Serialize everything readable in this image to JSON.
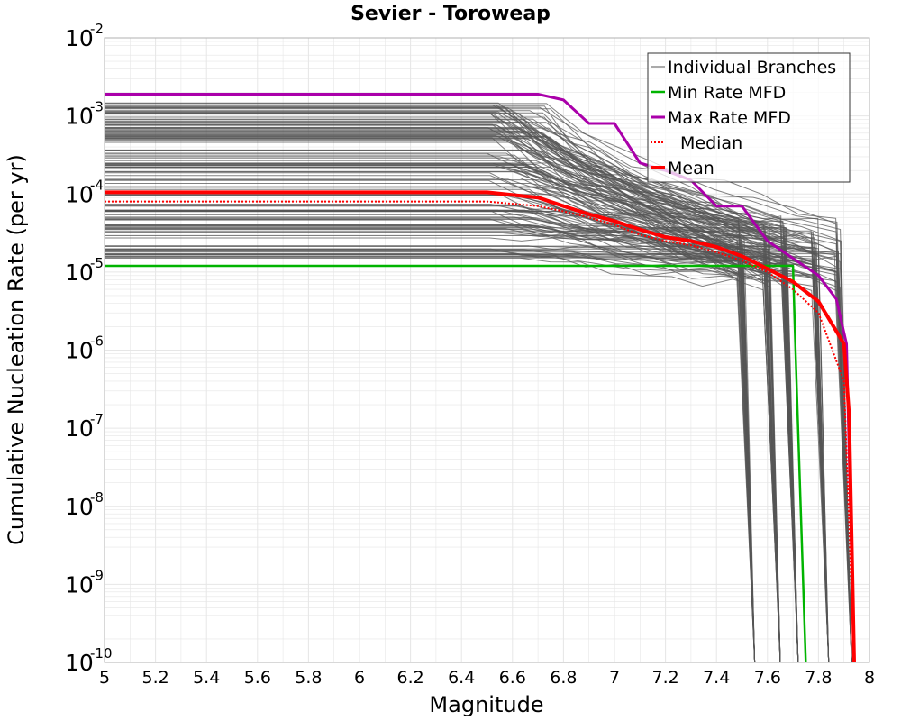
{
  "chart_data": {
    "type": "line",
    "title": "Sevier - Toroweap",
    "xlabel": "Magnitude",
    "ylabel": "Cumulative Nucleation Rate (per yr)",
    "yscale": "log",
    "xlim": [
      5,
      8
    ],
    "ylim": [
      1e-10,
      0.01
    ],
    "x_ticks": [
      "5",
      "5.2",
      "5.4",
      "5.6",
      "5.8",
      "6",
      "6.2",
      "6.4",
      "6.6",
      "6.8",
      "7",
      "7.2",
      "7.4",
      "7.6",
      "7.8",
      "8"
    ],
    "y_ticks": [
      {
        "base": "10",
        "exp": "-2"
      },
      {
        "base": "10",
        "exp": "-3"
      },
      {
        "base": "10",
        "exp": "-4"
      },
      {
        "base": "10",
        "exp": "-5"
      },
      {
        "base": "10",
        "exp": "-6"
      },
      {
        "base": "10",
        "exp": "-7"
      },
      {
        "base": "10",
        "exp": "-8"
      },
      {
        "base": "10",
        "exp": "-9"
      },
      {
        "base": "10",
        "exp": "-10"
      }
    ],
    "grid": true,
    "legend_position": "top-right",
    "colors": {
      "branches": "#555555",
      "min": "#00b400",
      "max": "#aa00aa",
      "median": "#ff0000",
      "mean": "#ff0000",
      "grid": "#e6e6e6"
    },
    "legend": [
      {
        "key": "branches",
        "label": "Individual Branches"
      },
      {
        "key": "min",
        "label": "Min Rate MFD"
      },
      {
        "key": "max",
        "label": "Max Rate MFD"
      },
      {
        "key": "median",
        "label": "Median"
      },
      {
        "key": "mean",
        "label": "Mean"
      }
    ],
    "series": [
      {
        "name": "Min Rate MFD",
        "key": "min",
        "x": [
          5.0,
          6.5,
          7.0,
          7.5,
          7.7,
          7.71,
          7.75
        ],
        "y": [
          1.2e-05,
          1.2e-05,
          1.2e-05,
          1.2e-05,
          1.2e-05,
          1e-06,
          1e-10
        ]
      },
      {
        "name": "Max Rate MFD",
        "key": "max",
        "x": [
          5.0,
          6.5,
          6.7,
          6.8,
          6.9,
          7.0,
          7.1,
          7.2,
          7.3,
          7.4,
          7.5,
          7.6,
          7.7,
          7.8,
          7.87,
          7.91,
          7.94
        ],
        "y": [
          0.0019,
          0.0019,
          0.0019,
          0.0016,
          0.0008,
          0.0008,
          0.00025,
          0.0002,
          0.00015,
          7e-05,
          7e-05,
          2.5e-05,
          1.5e-05,
          9e-06,
          4.5e-06,
          1.2e-06,
          1e-10
        ]
      },
      {
        "name": "Median",
        "key": "median",
        "x": [
          5.0,
          6.5,
          6.7,
          6.8,
          6.9,
          7.0,
          7.1,
          7.2,
          7.3,
          7.4,
          7.5,
          7.6,
          7.7,
          7.8,
          7.9,
          7.94
        ],
        "y": [
          8e-05,
          8e-05,
          7e-05,
          6e-05,
          5e-05,
          4e-05,
          3e-05,
          2.5e-05,
          2.2e-05,
          1.8e-05,
          1.4e-05,
          1e-05,
          6e-06,
          3e-06,
          4e-07,
          1e-10
        ]
      },
      {
        "name": "Mean",
        "key": "mean",
        "x": [
          5.0,
          6.5,
          6.7,
          6.8,
          6.9,
          7.0,
          7.1,
          7.2,
          7.3,
          7.4,
          7.5,
          7.6,
          7.7,
          7.8,
          7.9,
          7.92,
          7.94
        ],
        "y": [
          0.000105,
          0.000105,
          9e-05,
          7e-05,
          5.5e-05,
          4.5e-05,
          3.5e-05,
          2.8e-05,
          2.5e-05,
          2.1e-05,
          1.6e-05,
          1.1e-05,
          7.5e-06,
          4.2e-06,
          1.2e-06,
          1.5e-07,
          1e-10
        ]
      }
    ],
    "branch_envelope": {
      "rate_range_at_low_magnitude": [
        1.5e-05,
        0.0015
      ],
      "taper_start_magnitude": 6.5,
      "cutoff_magnitudes": [
        7.55,
        7.65,
        7.72,
        7.84,
        7.93
      ],
      "count_drawn": 150
    }
  }
}
